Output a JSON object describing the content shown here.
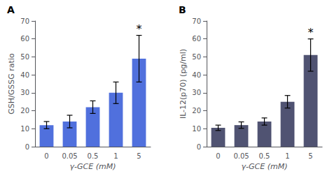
{
  "chart_data": [
    {
      "type": "bar",
      "title": "A",
      "categories": [
        "0",
        "0.05",
        "0.5",
        "1",
        "5"
      ],
      "values": [
        12,
        14,
        22,
        30,
        49
      ],
      "errors": [
        2,
        3.5,
        3.5,
        6,
        13
      ],
      "xlabel": "γ-GCE (mM)",
      "ylabel": "GSH/GSSG ratio",
      "ylim": [
        0,
        70
      ],
      "yticks": [
        0,
        10,
        20,
        30,
        40,
        50,
        60,
        70
      ],
      "annotations": [
        {
          "category": "5",
          "text": "*"
        }
      ],
      "grid": false
    },
    {
      "type": "bar",
      "title": "B",
      "categories": [
        "0",
        "0.05",
        "0.5",
        "1",
        "5"
      ],
      "values": [
        10.5,
        12,
        14,
        25,
        51
      ],
      "errors": [
        1.5,
        1.8,
        2,
        3.5,
        9
      ],
      "xlabel": "γ-GCE (mM)",
      "ylabel": "IL-12(p70) (pg/ml)",
      "ylim": [
        0,
        70
      ],
      "yticks": [
        0,
        10,
        20,
        30,
        40,
        50,
        60,
        70
      ],
      "annotations": [
        {
          "category": "5",
          "text": "*"
        }
      ],
      "grid": false
    }
  ]
}
